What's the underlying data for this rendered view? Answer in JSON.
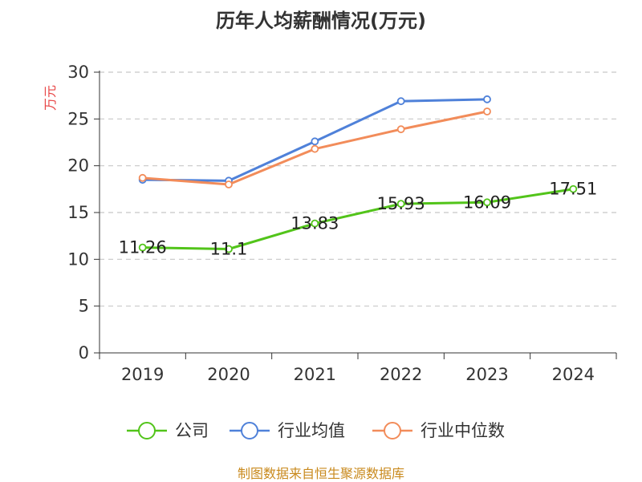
{
  "chart_data": {
    "type": "line",
    "title": "历年人均薪酬情况(万元)",
    "xlabel": "",
    "ylabel": "万元",
    "ylim": [
      0,
      30
    ],
    "yticks": [
      0,
      5,
      10,
      15,
      20,
      25,
      30
    ],
    "categories": [
      "2019",
      "2020",
      "2021",
      "2022",
      "2023",
      "2024"
    ],
    "grid": true,
    "legend_position": "bottom",
    "series": [
      {
        "name": "公司",
        "color": "#52c41a",
        "values": [
          11.26,
          11.1,
          13.83,
          15.93,
          16.09,
          17.51
        ],
        "labels": [
          "11.26",
          "11.1",
          "13.83",
          "15.93",
          "16.09",
          "17.51"
        ]
      },
      {
        "name": "行业均值",
        "color": "#4f81d9",
        "values": [
          18.5,
          18.4,
          22.6,
          26.9,
          27.1,
          null
        ]
      },
      {
        "name": "行业中位数",
        "color": "#f28c5a",
        "values": [
          18.7,
          18.0,
          21.8,
          23.9,
          25.8,
          null
        ]
      }
    ],
    "ylabel_color": "#e84545"
  },
  "footer": {
    "source": "制图数据来自恒生聚源数据库"
  }
}
